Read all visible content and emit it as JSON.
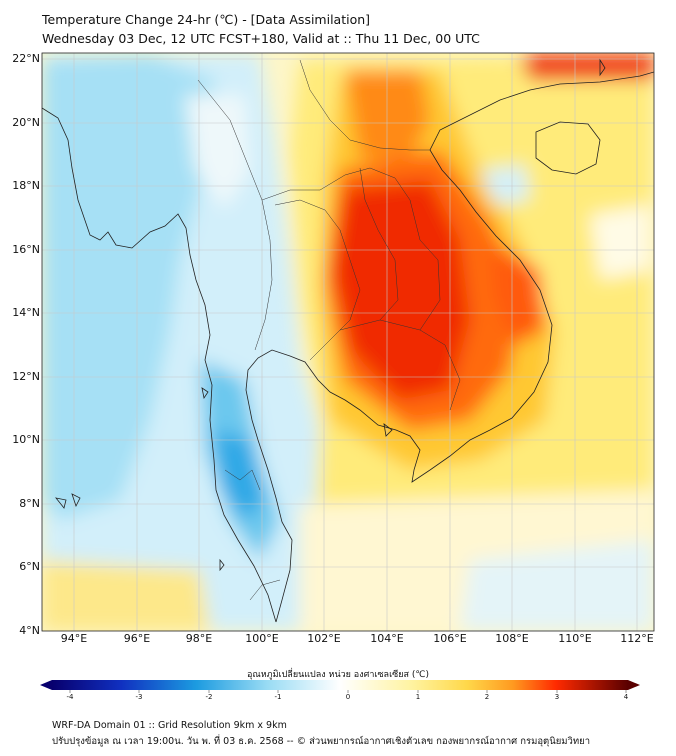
{
  "header": {
    "title": "Temperature Change 24-hr (℃) - [Data Assimilation]",
    "subtitle": "Wednesday 03 Dec, 12 UTC FCST+180, Valid at :: Thu 11 Dec, 00 UTC"
  },
  "map": {
    "lat_labels": [
      "22°N",
      "20°N",
      "18°N",
      "16°N",
      "14°N",
      "12°N",
      "10°N",
      "8°N",
      "6°N",
      "4°N"
    ],
    "lon_labels": [
      "94°E",
      "96°E",
      "98°E",
      "100°E",
      "102°E",
      "104°E",
      "106°E",
      "108°E",
      "110°E",
      "112°E"
    ],
    "region": "Indochina / Thailand",
    "field_summary": [
      {
        "area": "Northeast Thailand and Cambodia",
        "change_c": 3.2
      },
      {
        "area": "Laos and Vietnam",
        "change_c": 2.3
      },
      {
        "area": "Gulf of Tonkin north edge",
        "change_c": 3.0
      },
      {
        "area": "Andaman Sea and Myanmar coast",
        "change_c": -0.8
      },
      {
        "area": "Southern Thailand peninsula",
        "change_c": -1.6
      },
      {
        "area": "South China Sea",
        "change_c": 0.5
      }
    ]
  },
  "colorbar": {
    "title": "อุณหภูมิเปลี่ยนแปลง หน่วย องศาเซลเซียส (℃)",
    "ticks": [
      "-4",
      "-3",
      "-2",
      "-1",
      "0",
      "1",
      "2",
      "3",
      "4"
    ],
    "colors": {
      "cold_extreme": "#08006e",
      "cold": "#1c9be0",
      "neutral": "#ffffff",
      "warm": "#ffd84a",
      "hot": "#ff2a00",
      "hot_extreme": "#5a0000"
    }
  },
  "footer": {
    "line1": "WRF-DA Domain 01 :: Grid Resolution 9km x 9km",
    "line2": "ปรับปรุงข้อมูล ณ เวลา 19:00น. วัน พ. ที่ 03 ธ.ค. 2568 -- © ส่วนพยากรณ์อากาศเชิงตัวเลข กองพยากรณ์อากาศ กรมอุตุนิยมวิทยา"
  }
}
